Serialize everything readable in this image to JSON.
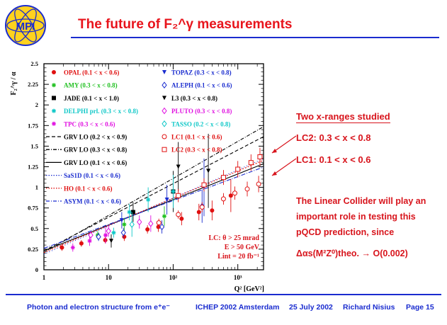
{
  "slide": {
    "title": "The future of F₂^γ measurements",
    "side_heading": "Two x-ranges studied",
    "lc2_label": "LC2: 0.3 < x < 0.8",
    "lc1_label": "LC1: 0.1 < x < 0.6",
    "statement": "The Linear Collider will play an important role in testing this pQCD prediction, since",
    "precision": "Δαs(M²Z⁰)theo. → O(0.002)",
    "accent_color": "#d8141c",
    "rule_color": "#1a2ccf"
  },
  "footer": {
    "topic": "Photon and electron structure from e⁺e⁻",
    "conference": "ICHEP 2002 Amsterdam",
    "date": "25 July 2002",
    "author": "Richard Nisius",
    "page": "Page 15"
  },
  "logo": {
    "text": "MPI"
  },
  "chart_data": {
    "type": "scatter",
    "ylabel": "F₂^γ / α",
    "xlabel": "Q² [GeV²]",
    "xscale": "log",
    "xlim": [
      1,
      2500
    ],
    "ylim": [
      0,
      2.5
    ],
    "x_ticks": [
      "1",
      "10",
      "10²",
      "10³",
      "10⁴"
    ],
    "y_ticks": [
      "0",
      "0.25",
      "0.5",
      "0.75",
      "1",
      "1.25",
      "1.5",
      "1.75",
      "2",
      "2.25",
      "2.5"
    ],
    "legend_left": [
      {
        "label": "OPAL (0.1 < x < 0.6)",
        "color": "#e01010",
        "marker": "circle-filled"
      },
      {
        "label": "AMY (0.3 < x < 0.8)",
        "color": "#20c020",
        "marker": "star"
      },
      {
        "label": "JADE (0.1 < x < 1.0)",
        "color": "#000000",
        "marker": "square-filled"
      },
      {
        "label": "DELPHI prl. (0.3 < x < 0.8)",
        "color": "#10c8c8",
        "marker": "star"
      },
      {
        "label": "TPC (0.3 < x < 0.6)",
        "color": "#e010e0",
        "marker": "star"
      },
      {
        "label": "GRV LO (0.2 < x < 0.9)",
        "color": "#000000",
        "marker": "line-dashed"
      },
      {
        "label": "GRV LO (0.3 < x < 0.8)",
        "color": "#000000",
        "marker": "line-dashdot"
      },
      {
        "label": "GRV LO (0.1 < x < 0.6)",
        "color": "#000000",
        "marker": "line-solid"
      },
      {
        "label": "SaS1D (0.1 < x < 0.6)",
        "color": "#1a2ccf",
        "marker": "line-dotted"
      },
      {
        "label": "HO (0.1 < x < 0.6)",
        "color": "#e01010",
        "marker": "line-dotted"
      },
      {
        "label": "ASYM (0.1 < x < 0.6)",
        "color": "#1a2ccf",
        "marker": "line-dashdot"
      }
    ],
    "legend_right": [
      {
        "label": "TOPAZ (0.3 < x < 0.8)",
        "color": "#1a2ccf",
        "marker": "triangle-down-filled"
      },
      {
        "label": "ALEPH (0.1 < x < 0.6)",
        "color": "#1a2ccf",
        "marker": "diamond-open"
      },
      {
        "label": "L3 (0.3 < x < 0.8)",
        "color": "#000000",
        "marker": "triangle-down-filled"
      },
      {
        "label": "PLUTO (0.3 < x < 0.8)",
        "color": "#e010e0",
        "marker": "diamond-open"
      },
      {
        "label": "TASSO (0.2 < x < 0.8)",
        "color": "#10c8c8",
        "marker": "diamond-open"
      },
      {
        "label": "LC1 (0.1 < x < 0.6)",
        "color": "#e01010",
        "marker": "circle-open"
      },
      {
        "label": "LC2 (0.3 < x < 0.8)",
        "color": "#e01010",
        "marker": "square-open"
      }
    ],
    "annotation": {
      "line1": "LC: θ > 25 mrad",
      "line2": "E > 50 GeV",
      "line3": "Lint = 20 fb⁻¹"
    },
    "series": [
      {
        "name": "OPAL (0.1 < x < 0.6)",
        "color": "#e01010",
        "marker": "circle-filled",
        "points": [
          [
            1.9,
            0.27
          ],
          [
            3.8,
            0.32
          ],
          [
            8.9,
            0.36
          ],
          [
            17.5,
            0.4
          ],
          [
            40,
            0.49
          ],
          [
            59,
            0.52
          ],
          [
            135,
            0.62
          ],
          [
            250,
            0.7
          ],
          [
            400,
            0.72
          ],
          [
            780,
            0.9
          ]
        ],
        "err": [
          0.04,
          0.04,
          0.04,
          0.05,
          0.05,
          0.06,
          0.08,
          0.1,
          0.12,
          0.2
        ]
      },
      {
        "name": "AMY (0.3 < x < 0.8)",
        "color": "#20c020",
        "marker": "star",
        "points": [
          [
            6.8,
            0.42
          ],
          [
            17.5,
            0.55
          ],
          [
            73,
            0.65
          ]
        ],
        "err": [
          0.05,
          0.08,
          0.12
        ]
      },
      {
        "name": "JADE (0.1 < x < 1.0)",
        "color": "#000000",
        "marker": "square-filled",
        "points": [
          [
            24,
            0.7
          ],
          [
            100,
            0.95
          ]
        ],
        "err": [
          0.12,
          0.25
        ]
      },
      {
        "name": "DELPHI prl. (0.3 < x < 0.8)",
        "color": "#10c8c8",
        "marker": "star",
        "points": [
          [
            12,
            0.45
          ],
          [
            21,
            0.7
          ],
          [
            41,
            0.85
          ],
          [
            100,
            0.95
          ]
        ],
        "err": [
          0.06,
          0.1,
          0.15,
          0.2
        ]
      },
      {
        "name": "TPC (0.3 < x < 0.6)",
        "color": "#e010e0",
        "marker": "star",
        "points": [
          [
            2.8,
            0.27
          ],
          [
            5.1,
            0.35
          ],
          [
            9,
            0.42
          ]
        ],
        "err": [
          0.05,
          0.06,
          0.1
        ]
      },
      {
        "name": "TOPAZ (0.3 < x < 0.8)",
        "color": "#1a2ccf",
        "marker": "triangle-down-filled",
        "points": [
          [
            16,
            0.6
          ],
          [
            80,
            0.85
          ],
          [
            300,
            1.0
          ]
        ],
        "err": [
          0.1,
          0.18,
          0.35
        ]
      },
      {
        "name": "ALEPH (0.1 < x < 0.6)",
        "color": "#1a2ccf",
        "marker": "diamond-open",
        "points": [
          [
            7,
            0.4
          ],
          [
            17,
            0.45
          ],
          [
            67,
            0.52
          ],
          [
            280,
            0.77
          ]
        ],
        "err": [
          0.05,
          0.06,
          0.08,
          0.2
        ]
      },
      {
        "name": "L3 (0.3 < x < 0.8)",
        "color": "#000000",
        "marker": "triangle-down-filled",
        "points": [
          [
            11,
            0.35
          ],
          [
            120,
            1.25
          ],
          [
            350,
            1.2
          ]
        ],
        "err": [
          0.08,
          0.3,
          0.45
        ]
      },
      {
        "name": "PLUTO (0.3 < x < 0.8)",
        "color": "#e010e0",
        "marker": "diamond-open",
        "points": [
          [
            5.3,
            0.42
          ],
          [
            10,
            0.47
          ],
          [
            30,
            0.58
          ],
          [
            45,
            0.56
          ]
        ],
        "err": [
          0.05,
          0.07,
          0.08,
          0.1
        ]
      },
      {
        "name": "TASSO (0.2 < x < 0.8)",
        "color": "#10c8c8",
        "marker": "diamond-open",
        "points": [
          [
            23,
            0.55
          ]
        ],
        "err": [
          0.15
        ]
      },
      {
        "name": "LC1 (0.1 < x < 0.6)",
        "color": "#e01010",
        "marker": "circle-open",
        "points": [
          [
            60,
            0.57
          ],
          [
            120,
            0.67
          ],
          [
            280,
            0.76
          ],
          [
            600,
            0.86
          ],
          [
            900,
            0.93
          ],
          [
            1400,
            0.98
          ],
          [
            2100,
            1.04
          ]
        ],
        "err": [
          0.05,
          0.05,
          0.06,
          0.07,
          0.08,
          0.09,
          0.1
        ]
      },
      {
        "name": "LC2 (0.3 < x < 0.8)",
        "color": "#e01010",
        "marker": "square-open",
        "points": [
          [
            120,
            0.9
          ],
          [
            300,
            1.03
          ],
          [
            600,
            1.12
          ],
          [
            1000,
            1.22
          ],
          [
            1600,
            1.3
          ],
          [
            2200,
            1.37
          ]
        ],
        "err": [
          0.08,
          0.08,
          0.09,
          0.1,
          0.1,
          0.11
        ]
      }
    ],
    "curves": [
      {
        "name": "GRV LO (0.2 < x < 0.9)",
        "color": "#000000",
        "dash": "5,3",
        "a": 0.23,
        "b": 0.177
      },
      {
        "name": "GRV LO (0.3 < x < 0.8)",
        "color": "#000000",
        "dash": "5,2,1,2",
        "a": 0.21,
        "b": 0.195
      },
      {
        "name": "GRV LO (0.1 < x < 0.6)",
        "color": "#000000",
        "dash": "",
        "a": 0.23,
        "b": 0.135
      },
      {
        "name": "SaS1D (0.1 < x < 0.6)",
        "color": "#1a2ccf",
        "dash": "1,3",
        "a": 0.19,
        "b": 0.148
      },
      {
        "name": "HO (0.1 < x < 0.6)",
        "color": "#e01010",
        "dash": "2,2",
        "a": 0.21,
        "b": 0.143
      },
      {
        "name": "ASYM (0.1 < x < 0.6)",
        "color": "#1a2ccf",
        "dash": "6,2,1,2",
        "a": 0.26,
        "b": 0.126
      }
    ]
  }
}
